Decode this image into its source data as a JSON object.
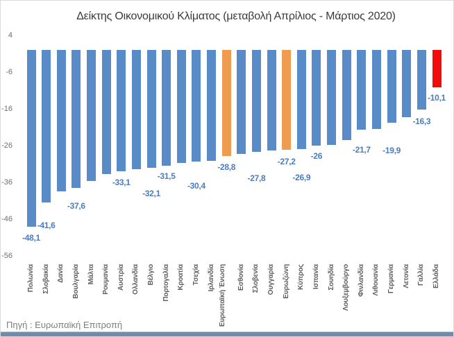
{
  "title": "Δείκτης Οικονομικού Κλίματος (μεταβολή Απρίλιος - Μάρτιος 2020)",
  "source_note": "Πηγή : Ευρωπαϊκή Επιτροπή",
  "colors": {
    "bar_blue": "#5a8bc9",
    "bar_orange": "#ef9b50",
    "bar_red": "#f20d0d",
    "data_label_text": "#4b7cbf",
    "axis_text": "#6e6e6e",
    "category_text": "#5f5f5f",
    "title_text": "#3a3a3a",
    "source_text": "#7d7d7d",
    "bottom_strip": "#6f8cab"
  },
  "chart_data": {
    "type": "bar",
    "title": "Δείκτης Οικονομικού Κλίματος (μεταβολή Απρίλιος - Μάρτιος 2020)",
    "xlabel": "",
    "ylabel": "",
    "ylim": [
      -56,
      4
    ],
    "yticks": [
      "4",
      "-6",
      "-16",
      "-26",
      "-36",
      "-46",
      "-56"
    ],
    "ytick_values": [
      4,
      -6,
      -16,
      -26,
      -36,
      -46,
      -56
    ],
    "grid": false,
    "legend": false,
    "categories": [
      "Πολωνία",
      "Σλοβακία",
      "Δανία",
      "Βουλγαρία",
      "Μάλτα",
      "Ρουμανία",
      "Αυστρία",
      "Ολλανδία",
      "Βέλγιο",
      "Πορτογαλία",
      "Κροατία",
      "Τσεχία",
      "Ιρλανδία",
      "Ευρωπαϊκή Ένωση",
      "Εσθονία",
      "Σλοβενία",
      "Ουγγαρία",
      "Ευρωζώνη",
      "Κύπρος",
      "Ισπανία",
      "Σουηδία",
      "Λουξεμβούργο",
      "Φινλανδία",
      "Λιθουανία",
      "Γερμανία",
      "Λετονία",
      "Γαλλία",
      "Ελλάδα"
    ],
    "values": [
      -48.1,
      -41.6,
      -38.4,
      -37.6,
      -35.6,
      -33.7,
      -33.1,
      -32.4,
      -32.1,
      -31.5,
      -30.7,
      -30.4,
      -30.1,
      -28.8,
      -28.3,
      -27.8,
      -27.4,
      -27.2,
      -26.9,
      -26.0,
      -25.8,
      -24.6,
      -21.7,
      -21.5,
      -19.9,
      -18.3,
      -16.3,
      -10.1
    ],
    "data_labels": [
      "-48,1",
      "-41,6",
      null,
      "-37,6",
      null,
      null,
      "-33,1",
      null,
      "-32,1",
      "-31,5",
      null,
      "-30,4",
      null,
      "-28,8",
      null,
      "-27,8",
      null,
      "-27,2",
      "-26,9",
      "-26",
      null,
      null,
      "-21,7",
      null,
      "-19,9",
      null,
      "-16,3",
      "-10,1"
    ],
    "label_dy": [
      11,
      28,
      null,
      21,
      null,
      null,
      11,
      null,
      32,
      10,
      null,
      30,
      null,
      11,
      null,
      33,
      null,
      12,
      36,
      10,
      null,
      null,
      24,
      null,
      35,
      null,
      12,
      10
    ],
    "bar_color_keys": [
      "blue",
      "blue",
      "blue",
      "blue",
      "blue",
      "blue",
      "blue",
      "blue",
      "blue",
      "blue",
      "blue",
      "blue",
      "blue",
      "orange",
      "blue",
      "blue",
      "blue",
      "orange",
      "blue",
      "blue",
      "blue",
      "blue",
      "blue",
      "blue",
      "blue",
      "blue",
      "blue",
      "red"
    ]
  }
}
